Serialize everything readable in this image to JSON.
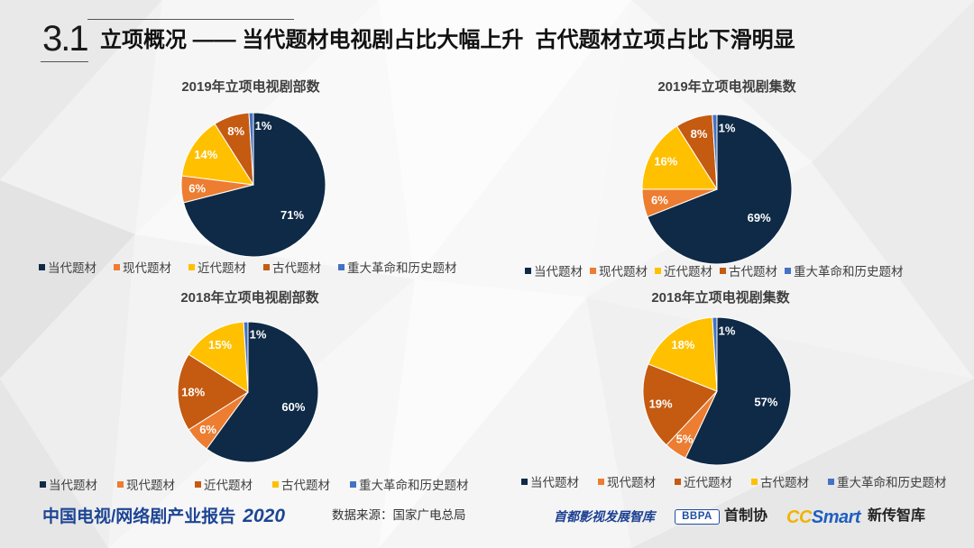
{
  "section": {
    "number": "3.1",
    "title": "立项概况 —— 当代题材电视剧占比大幅上升  古代题材立项占比下滑明显"
  },
  "chart_data": [
    {
      "type": "pie",
      "title": "2019年立项电视剧部数",
      "categories": [
        "当代题材",
        "现代题材",
        "近代题材",
        "古代题材",
        "重大革命和历史题材"
      ],
      "values": [
        71,
        6,
        14,
        8,
        1
      ],
      "labels": [
        "71%",
        "6%",
        "14%",
        "8%",
        "1%"
      ],
      "colors": [
        "#0e2a47",
        "#ed7d31",
        "#ffc000",
        "#c55a11",
        "#4472c4"
      ],
      "legend_position": "bottom"
    },
    {
      "type": "pie",
      "title": "2019年立项电视剧集数",
      "categories": [
        "当代题材",
        "现代题材",
        "近代题材",
        "古代题材",
        "重大革命和历史题材"
      ],
      "values": [
        69,
        6,
        16,
        8,
        1
      ],
      "labels": [
        "69%",
        "6%",
        "16%",
        "8%",
        "1%"
      ],
      "colors": [
        "#0e2a47",
        "#ed7d31",
        "#ffc000",
        "#c55a11",
        "#4472c4"
      ],
      "legend_position": "bottom"
    },
    {
      "type": "pie",
      "title": "2018年立项电视剧部数",
      "categories": [
        "当代题材",
        "现代题材",
        "近代题材",
        "古代题材",
        "重大革命和历史题材"
      ],
      "values": [
        60,
        6,
        18,
        15,
        1
      ],
      "labels": [
        "60%",
        "6%",
        "18%",
        "15%",
        "1%"
      ],
      "colors": [
        "#0e2a47",
        "#ed7d31",
        "#c55a11",
        "#ffc000",
        "#4472c4"
      ],
      "legend_position": "bottom"
    },
    {
      "type": "pie",
      "title": "2018年立项电视剧集数",
      "categories": [
        "当代题材",
        "现代题材",
        "近代题材",
        "古代题材",
        "重大革命和历史题材"
      ],
      "values": [
        57,
        5,
        19,
        18,
        1
      ],
      "labels": [
        "57%",
        "5%",
        "19%",
        "18%",
        "1%"
      ],
      "colors": [
        "#0e2a47",
        "#ed7d31",
        "#c55a11",
        "#ffc000",
        "#4472c4"
      ],
      "legend_position": "bottom"
    }
  ],
  "footer": {
    "report_title": "中国电视/网络剧产业报告",
    "report_year": "2020",
    "source": "数据来源：国家广电总局",
    "logos": {
      "think_tank": "首都影视发展智库",
      "bbpa": "BBPA",
      "bbpa_name": "首制协",
      "ccsmart_cc": "CC",
      "ccsmart_smart": "Smart",
      "xinchuan": "新传智库"
    }
  }
}
